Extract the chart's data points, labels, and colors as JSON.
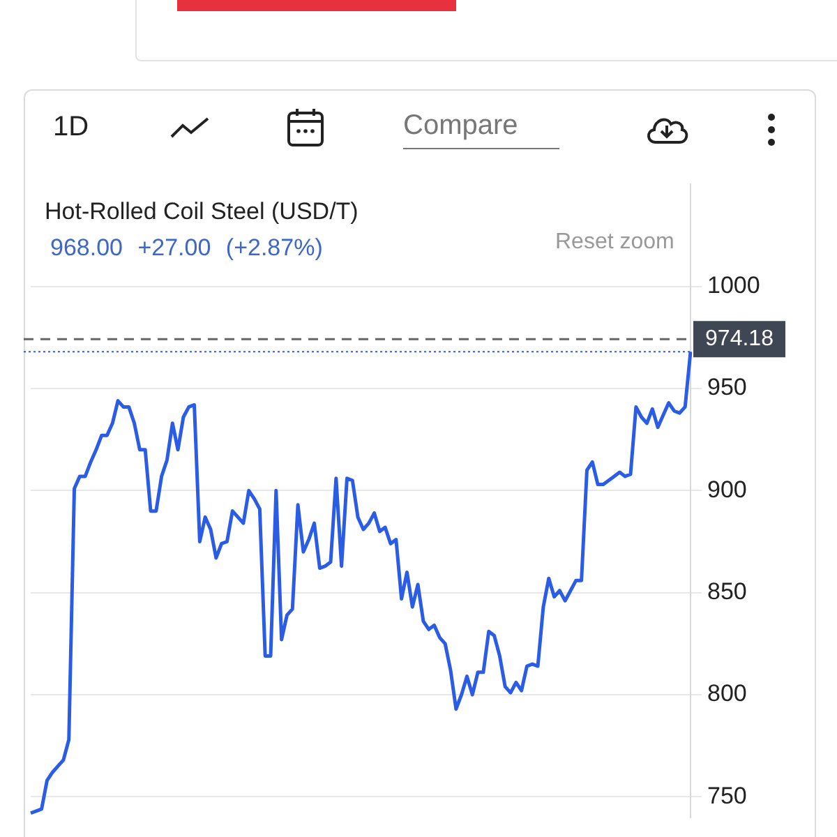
{
  "chart_data": {
    "type": "line",
    "title": "Hot-Rolled Coil Steel (USD/T)",
    "subtitle": "968.00 +27.00 (+2.87%)",
    "annotations": [
      "1D",
      "Compare",
      "Reset zoom"
    ],
    "categories": [
      null,
      null,
      null,
      null,
      null,
      null,
      null,
      null,
      null,
      null,
      null,
      null,
      null,
      null,
      null,
      null,
      null,
      null,
      null,
      null,
      null,
      null,
      null,
      null,
      null,
      null,
      null,
      null,
      null,
      null,
      null,
      null,
      null,
      null,
      null,
      null,
      null,
      null,
      null,
      null,
      null,
      null,
      null,
      null,
      null,
      null,
      null,
      null,
      null,
      null,
      null,
      null,
      null,
      null,
      null,
      null,
      null,
      null,
      null,
      null,
      null,
      null,
      null,
      null,
      null,
      null,
      null,
      null,
      null,
      null,
      null,
      null,
      null,
      null,
      null,
      null,
      null,
      null,
      null,
      null,
      null,
      null,
      null,
      null,
      null,
      null,
      null,
      null,
      null,
      null,
      null,
      null,
      null,
      null,
      null,
      null,
      null,
      null,
      null,
      null,
      null,
      null,
      null,
      null,
      null,
      null,
      null,
      null,
      null,
      null,
      null,
      null,
      null,
      null,
      null,
      null,
      null,
      null,
      null,
      null,
      null,
      null
    ],
    "series": [
      {
        "color": "#2b5ce6",
        "values": [
          742,
          743,
          744,
          758,
          762,
          765,
          768,
          778,
          901,
          907,
          907,
          914,
          920,
          927,
          927,
          933,
          944,
          941,
          941,
          933,
          920,
          920,
          890,
          890,
          907,
          915,
          933,
          920,
          936,
          941,
          942,
          875,
          887,
          881,
          867,
          874,
          875,
          890,
          887,
          884,
          900,
          896,
          891,
          819,
          819,
          900,
          827,
          839,
          842,
          893,
          870,
          876,
          884,
          862,
          863,
          865,
          906,
          863,
          906,
          905,
          887,
          881,
          884,
          889,
          880,
          882,
          874,
          876,
          847,
          860,
          843,
          854,
          836,
          832,
          834,
          828,
          825,
          812,
          793,
          800,
          809,
          800,
          811,
          811,
          831,
          829,
          819,
          804,
          801,
          806,
          802,
          814,
          815,
          814,
          843,
          857,
          848,
          851,
          846,
          851,
          856,
          856,
          910,
          914,
          903,
          903,
          905,
          907,
          909,
          907,
          908,
          941,
          936,
          933,
          940,
          931,
          937,
          943,
          939,
          938,
          941,
          968
        ]
      }
    ],
    "ylim": [
      740,
      1050
    ],
    "yticks": [
      750,
      800,
      850,
      900,
      950,
      1000
    ],
    "grid": "y",
    "tick_labels": "y",
    "marker": "none",
    "line_style": "solid",
    "ref_lines": [
      {
        "axis": "y",
        "value": 974.18,
        "label": "974.18",
        "color": "#666666",
        "line_style": "dashed"
      },
      {
        "axis": "y",
        "value": 968,
        "color": "#2b5ce6",
        "line_style": "dotted"
      }
    ]
  }
}
